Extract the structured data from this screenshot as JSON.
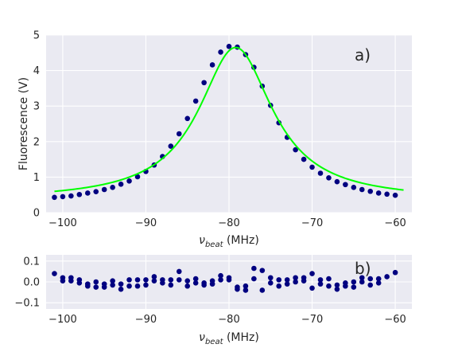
{
  "chart_data": [
    {
      "type": "scatter",
      "panel_label": "a)",
      "xlabel_symbol": "ν",
      "xlabel_subscript": "beat",
      "xlabel_unit": " (MHz)",
      "ylabel": "Fluorescence (V)",
      "xlim": [
        -102,
        -58
      ],
      "ylim": [
        0,
        5
      ],
      "xticks": [
        -100,
        -90,
        -80,
        -70,
        -60
      ],
      "xtick_labels": [
        "−100",
        "−90",
        "−80",
        "−70",
        "−60"
      ],
      "yticks": [
        0,
        1,
        2,
        3,
        4,
        5
      ],
      "ytick_labels": [
        "0",
        "1",
        "2",
        "3",
        "4",
        "5"
      ],
      "grid": true,
      "series": [
        {
          "kind": "points",
          "color": "#000080",
          "x": [
            -101,
            -100,
            -99,
            -98,
            -97,
            -96,
            -95,
            -94,
            -93,
            -92,
            -91,
            -90,
            -89,
            -88,
            -87,
            -86,
            -85,
            -84,
            -83,
            -82,
            -81,
            -80,
            -79,
            -78,
            -77,
            -76,
            -75,
            -74,
            -73,
            -72,
            -71,
            -70,
            -69,
            -68,
            -67,
            -66,
            -65,
            -64,
            -63,
            -62,
            -61,
            -60
          ],
          "y": [
            0.43,
            0.45,
            0.47,
            0.51,
            0.55,
            0.59,
            0.65,
            0.71,
            0.8,
            0.89,
            1.01,
            1.16,
            1.34,
            1.58,
            1.87,
            2.22,
            2.65,
            3.14,
            3.66,
            4.16,
            4.52,
            4.68,
            4.66,
            4.45,
            4.09,
            3.56,
            3.02,
            2.53,
            2.12,
            1.77,
            1.5,
            1.28,
            1.11,
            0.98,
            0.87,
            0.79,
            0.71,
            0.65,
            0.6,
            0.55,
            0.52,
            0.49
          ]
        },
        {
          "kind": "fit",
          "color": "#00ff00",
          "center": -79.2,
          "amplitude": 4.3,
          "hwhm": 5.4,
          "offset": 0.35
        }
      ]
    },
    {
      "type": "scatter",
      "panel_label": "b)",
      "xlabel_symbol": "ν",
      "xlabel_subscript": "beat",
      "xlabel_unit": " (MHz)",
      "ylabel": "",
      "xlim": [
        -102,
        -58
      ],
      "ylim": [
        -0.13,
        0.13
      ],
      "xticks": [
        -100,
        -90,
        -80,
        -70,
        -60
      ],
      "xtick_labels": [
        "−100",
        "−90",
        "−80",
        "−70",
        "−60"
      ],
      "yticks": [
        -0.1,
        0,
        0.1
      ],
      "ytick_labels": [
        "−0.1",
        "0.0",
        "0.1"
      ],
      "grid": true,
      "series": [
        {
          "kind": "points",
          "color": "#000080",
          "x": [
            -101,
            -100,
            -100,
            -99,
            -99,
            -98,
            -98,
            -97,
            -97,
            -96,
            -96,
            -95,
            -95,
            -94,
            -94,
            -93,
            -93,
            -92,
            -92,
            -91,
            -91,
            -90,
            -90,
            -89,
            -89,
            -88,
            -88,
            -87,
            -87,
            -86,
            -86,
            -85,
            -85,
            -84,
            -84,
            -83,
            -83,
            -82,
            -82,
            -81,
            -81,
            -80,
            -80,
            -79,
            -79,
            -78,
            -78,
            -77,
            -77,
            -76,
            -76,
            -75,
            -75,
            -74,
            -74,
            -73,
            -73,
            -72,
            -72,
            -71,
            -71,
            -70,
            -70,
            -69,
            -69,
            -68,
            -68,
            -67,
            -67,
            -66,
            -66,
            -65,
            -65,
            -64,
            -64,
            -63,
            -63,
            -62,
            -62,
            -61,
            -60
          ],
          "y": [
            0.04,
            0.02,
            0.005,
            0.02,
            0.005,
            0.01,
            -0.005,
            -0.01,
            -0.02,
            0.0,
            -0.025,
            -0.01,
            -0.025,
            0.005,
            -0.015,
            -0.01,
            -0.035,
            0.01,
            -0.02,
            0.01,
            -0.02,
            0.01,
            -0.015,
            0.025,
            0.005,
            0.01,
            -0.005,
            0.01,
            -0.015,
            0.05,
            0.01,
            0.005,
            -0.02,
            0.015,
            -0.005,
            -0.005,
            -0.015,
            0.005,
            -0.01,
            0.03,
            0.01,
            0.02,
            0.01,
            -0.025,
            -0.035,
            -0.02,
            -0.04,
            0.065,
            0.015,
            0.055,
            -0.04,
            0.02,
            -0.005,
            0.01,
            -0.02,
            0.01,
            -0.01,
            0.02,
            0.0,
            0.02,
            0.005,
            0.04,
            -0.03,
            0.01,
            -0.01,
            0.015,
            -0.02,
            -0.015,
            -0.035,
            -0.005,
            -0.02,
            0.0,
            -0.025,
            0.02,
            0.0,
            0.015,
            -0.015,
            0.015,
            -0.005,
            0.025,
            0.045
          ]
        }
      ]
    }
  ]
}
